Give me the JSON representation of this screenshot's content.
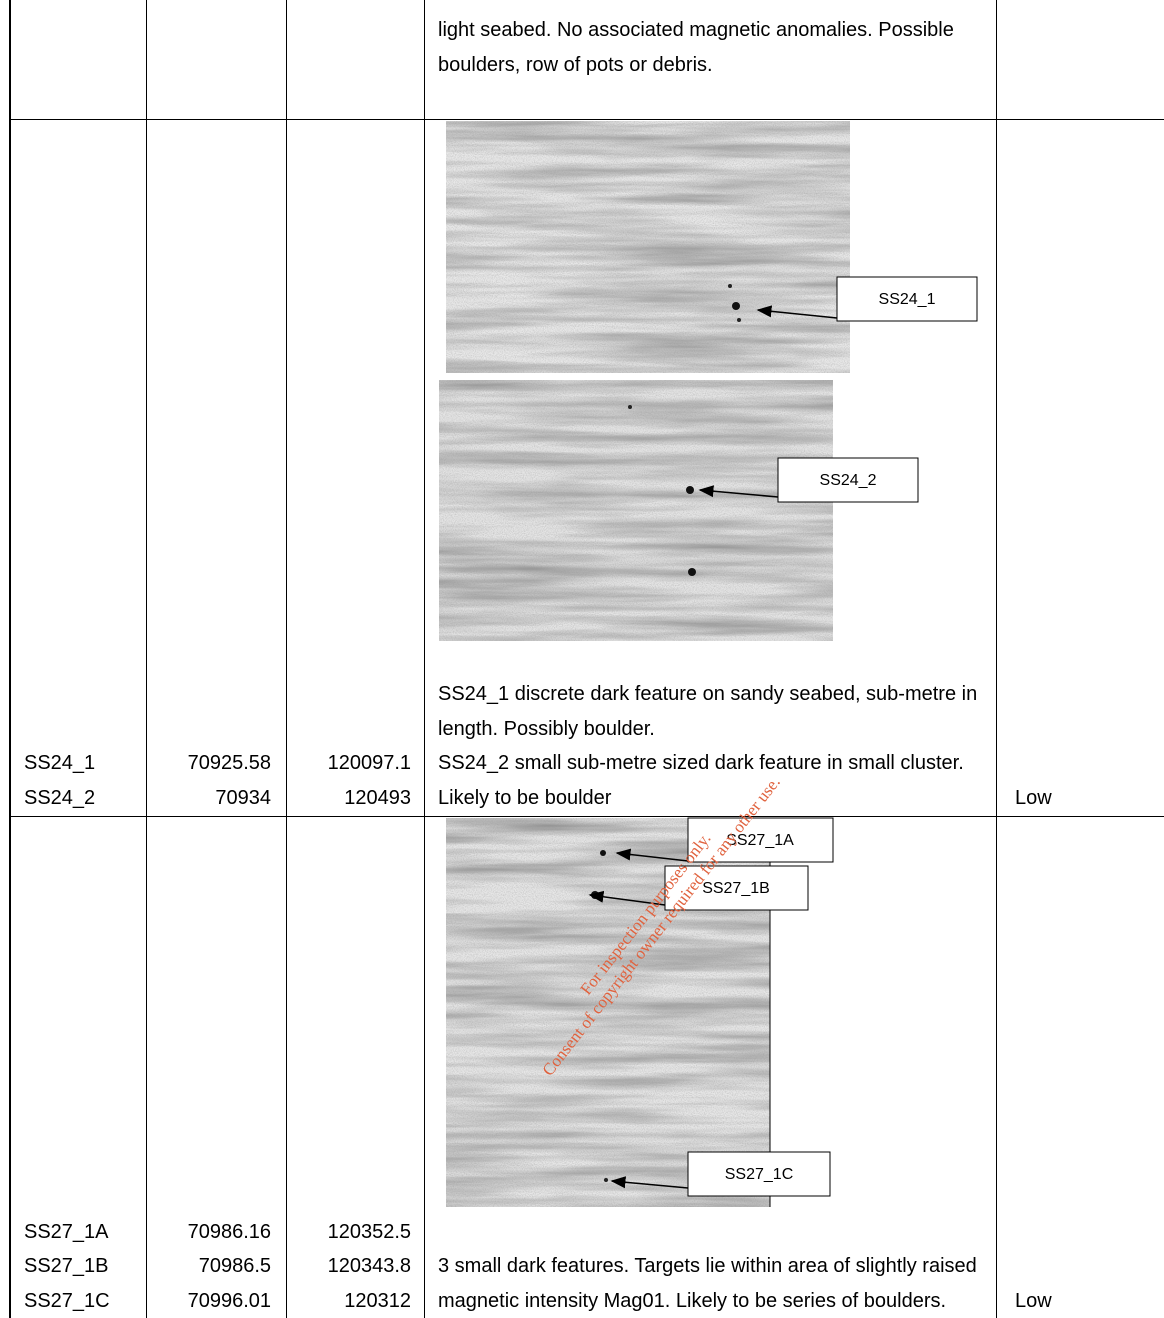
{
  "table": {
    "rows": [
      {
        "description": [
          "light seabed. No associated magnetic anomalies. Possible boulders, row of pots or debris."
        ]
      },
      {
        "targets": [
          {
            "id": "SS24_1",
            "easting": "70925.58",
            "northing": "120097.1"
          },
          {
            "id": "SS24_2",
            "easting": "70934",
            "northing": "120493"
          }
        ],
        "images": [
          {
            "callouts": [
              "SS24_1"
            ]
          },
          {
            "callouts": [
              "SS24_2"
            ]
          }
        ],
        "description": [
          "SS24_1 discrete dark feature on sandy seabed, sub-metre in length. Possibly boulder.",
          "SS24_2 small sub-metre sized dark feature in small cluster. Likely to be boulder"
        ],
        "rating": "Low"
      },
      {
        "targets": [
          {
            "id": "SS27_1A",
            "easting": "70986.16",
            "northing": "120352.5"
          },
          {
            "id": "SS27_1B",
            "easting": "70986.5",
            "northing": "120343.8"
          },
          {
            "id": "SS27_1C",
            "easting": "70996.01",
            "northing": "120312"
          }
        ],
        "images": [
          {
            "callouts": [
              "SS27_1A",
              "SS27_1B",
              "SS27_1C"
            ]
          }
        ],
        "description": [
          "3 small dark features. Targets lie within area of slightly raised magnetic intensity Mag01. Likely to be series of boulders."
        ],
        "rating": "Low"
      }
    ]
  },
  "watermark": [
    "For inspection purposes only.",
    "Consent of copyright owner required for any other use."
  ]
}
